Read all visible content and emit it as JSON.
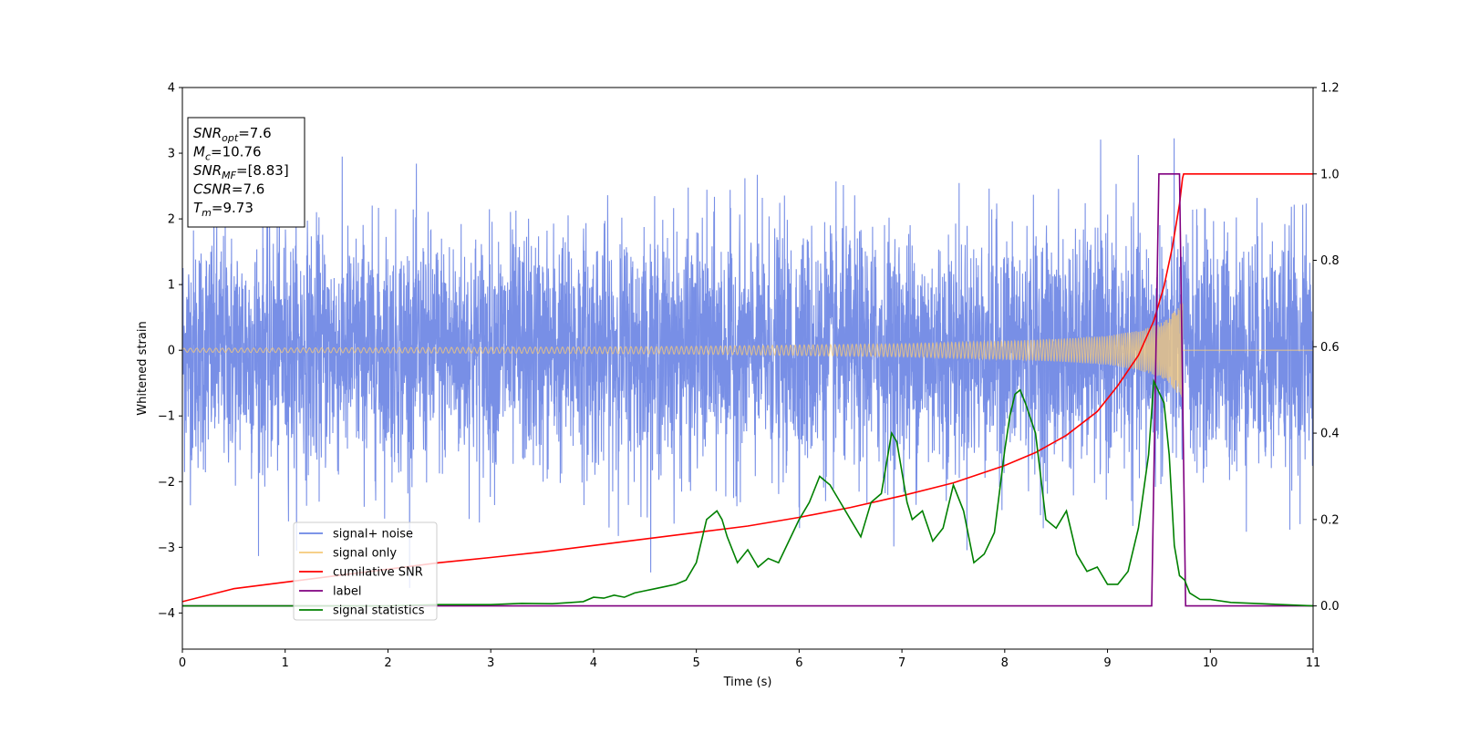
{
  "chart_data": {
    "type": "line",
    "xlabel": "Time (s)",
    "ylabel": "Whitened strain",
    "xlim": [
      0,
      11
    ],
    "ylim_left": [
      -4.55,
      4
    ],
    "ylim_right": [
      -0.1,
      1.2
    ],
    "x_ticks": [
      0,
      1,
      2,
      3,
      4,
      5,
      6,
      7,
      8,
      9,
      10,
      11
    ],
    "y_ticks_left": [
      4,
      3,
      2,
      1,
      0,
      -1,
      -2,
      -3,
      -4
    ],
    "y_tick_labels_left": [
      "4",
      "3",
      "2",
      "1",
      "0",
      "−1",
      "−2",
      "−3",
      "−4"
    ],
    "y_ticks_right": [
      1.2,
      1.0,
      0.8,
      0.6,
      0.4,
      0.2,
      0.0
    ],
    "y_tick_labels_right": [
      "1.2",
      "1.0",
      "0.8",
      "0.6",
      "0.4",
      "0.2",
      "0.0"
    ],
    "grid": false,
    "legend_position": "lower-left",
    "annotation_box": {
      "position": "upper-left",
      "lines": [
        {
          "base": "SNR",
          "sub": "opt",
          "rest": "=7.6"
        },
        {
          "base": "M",
          "sub": "c",
          "rest": "=10.76"
        },
        {
          "base": "SNR",
          "sub": "MF",
          "rest": "=[8.83]"
        },
        {
          "base": "CSNR",
          "sub": "",
          "rest": "=7.6"
        },
        {
          "base": "T",
          "sub": "m",
          "rest": "=9.73"
        }
      ]
    },
    "series": [
      {
        "name": "signal+ noise",
        "axis": "left",
        "color": "#6c86e4",
        "description_values": {
          "mean": 0.0,
          "std": 0.9,
          "min": -4.2,
          "max": 3.6
        }
      },
      {
        "name": "signal only",
        "axis": "left",
        "color": "#f5c97a",
        "envelope": {
          "x": [
            0,
            1,
            2,
            3,
            4,
            5,
            6,
            7,
            8,
            8.5,
            9,
            9.3,
            9.5,
            9.6,
            9.7,
            9.73
          ],
          "amplitude": [
            0.03,
            0.035,
            0.04,
            0.045,
            0.05,
            0.06,
            0.08,
            0.1,
            0.14,
            0.17,
            0.22,
            0.3,
            0.4,
            0.5,
            0.7,
            0.72
          ]
        }
      },
      {
        "name": "cumilative SNR",
        "axis": "right",
        "color": "#ff0000",
        "x": [
          0,
          0.5,
          1,
          1.5,
          2,
          2.5,
          3,
          3.5,
          4,
          4.5,
          5,
          5.5,
          6,
          6.5,
          7,
          7.5,
          8,
          8.3,
          8.6,
          8.9,
          9.1,
          9.3,
          9.45,
          9.55,
          9.63,
          9.7,
          9.73,
          9.74,
          11
        ],
        "values": [
          0.01,
          0.04,
          0.055,
          0.07,
          0.085,
          0.1,
          0.112,
          0.125,
          0.14,
          0.155,
          0.17,
          0.185,
          0.205,
          0.228,
          0.255,
          0.285,
          0.325,
          0.355,
          0.395,
          0.45,
          0.51,
          0.58,
          0.66,
          0.74,
          0.83,
          0.93,
          0.99,
          1.0,
          1.0
        ]
      },
      {
        "name": "label",
        "axis": "right",
        "color": "#800080",
        "x": [
          0,
          9.43,
          9.5,
          9.7,
          9.76,
          11
        ],
        "values": [
          0,
          0,
          1,
          1,
          0,
          0
        ]
      },
      {
        "name": "signal statistics",
        "axis": "right",
        "color": "#008000",
        "x": [
          0,
          1,
          2,
          2.5,
          3,
          3.3,
          3.6,
          3.9,
          4,
          4.1,
          4.2,
          4.3,
          4.4,
          4.5,
          4.6,
          4.7,
          4.8,
          4.9,
          5.0,
          5.1,
          5.2,
          5.25,
          5.3,
          5.4,
          5.5,
          5.6,
          5.7,
          5.8,
          5.9,
          6.0,
          6.1,
          6.2,
          6.3,
          6.4,
          6.5,
          6.6,
          6.7,
          6.8,
          6.9,
          6.95,
          7.05,
          7.1,
          7.2,
          7.3,
          7.4,
          7.5,
          7.6,
          7.7,
          7.8,
          7.9,
          8.0,
          8.05,
          8.1,
          8.15,
          8.2,
          8.3,
          8.4,
          8.5,
          8.6,
          8.7,
          8.8,
          8.9,
          9.0,
          9.1,
          9.2,
          9.3,
          9.4,
          9.45,
          9.55,
          9.6,
          9.65,
          9.7,
          9.75,
          9.8,
          9.9,
          10.0,
          10.2,
          10.5,
          11
        ],
        "values": [
          0.0,
          0.0,
          0.0,
          0.003,
          0.003,
          0.006,
          0.005,
          0.01,
          0.02,
          0.018,
          0.025,
          0.02,
          0.03,
          0.035,
          0.04,
          0.045,
          0.05,
          0.06,
          0.1,
          0.2,
          0.22,
          0.2,
          0.16,
          0.1,
          0.13,
          0.09,
          0.11,
          0.1,
          0.15,
          0.2,
          0.24,
          0.3,
          0.28,
          0.24,
          0.2,
          0.16,
          0.24,
          0.26,
          0.4,
          0.38,
          0.24,
          0.2,
          0.22,
          0.15,
          0.18,
          0.28,
          0.22,
          0.1,
          0.12,
          0.17,
          0.36,
          0.44,
          0.49,
          0.5,
          0.47,
          0.4,
          0.2,
          0.18,
          0.22,
          0.12,
          0.08,
          0.09,
          0.05,
          0.05,
          0.08,
          0.18,
          0.35,
          0.52,
          0.47,
          0.35,
          0.14,
          0.07,
          0.06,
          0.03,
          0.015,
          0.015,
          0.008,
          0.005,
          0.0
        ]
      }
    ]
  }
}
